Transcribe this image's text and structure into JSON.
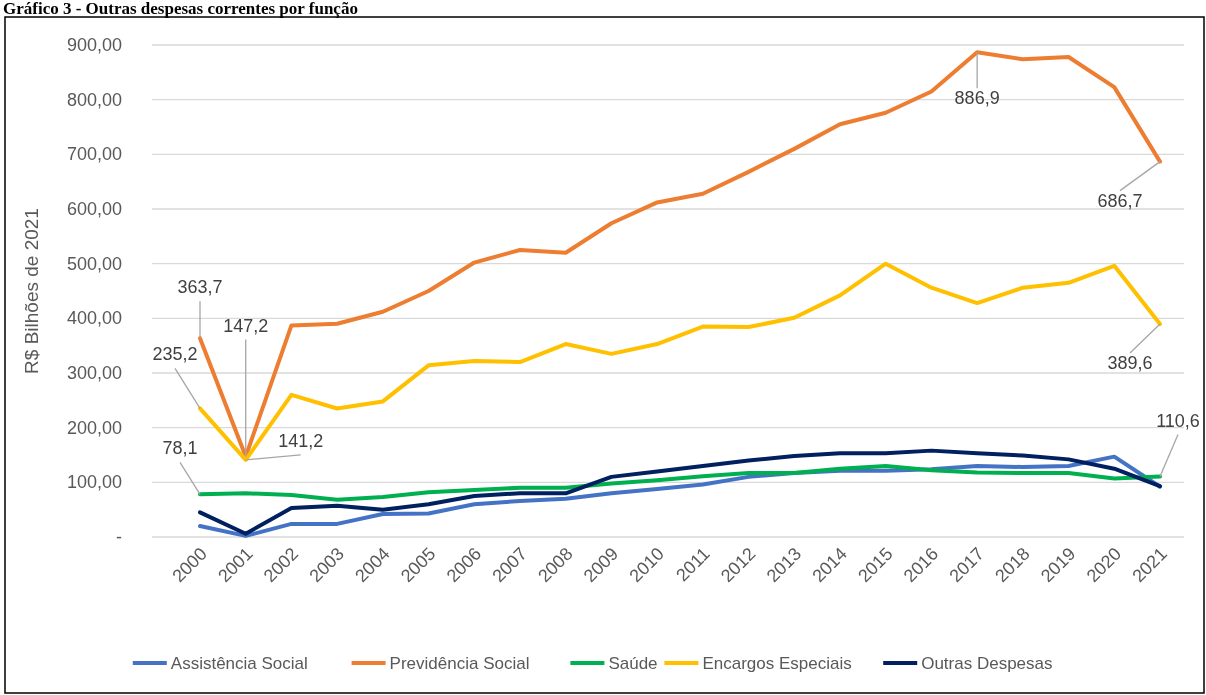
{
  "chart_data": {
    "type": "line",
    "title": "Gráfico 3 - Outras despesas correntes por função",
    "ylabel": "R$ Bilhões de 2021",
    "categories": [
      "2000",
      "2001",
      "2002",
      "2003",
      "2004",
      "2005",
      "2006",
      "2007",
      "2008",
      "2009",
      "2010",
      "2011",
      "2012",
      "2013",
      "2014",
      "2015",
      "2016",
      "2017",
      "2018",
      "2019",
      "2020",
      "2021"
    ],
    "series": [
      {
        "name": "Assistência Social",
        "color": "#4472c4",
        "values": [
          20,
          2,
          24,
          24,
          42,
          43,
          60,
          66,
          70,
          80,
          88,
          96,
          110,
          117,
          121,
          121,
          124,
          130,
          128,
          130,
          147,
          92
        ]
      },
      {
        "name": "Previdência Social",
        "color": "#ed7d31",
        "values": [
          363.7,
          147.2,
          387,
          390,
          412,
          450,
          502,
          525,
          520,
          574,
          612,
          628,
          668,
          710,
          755,
          776,
          815,
          886.9,
          874,
          878,
          823,
          686.7
        ],
        "value_labels": [
          "363,7",
          "147,2",
          null,
          null,
          null,
          null,
          null,
          null,
          null,
          null,
          null,
          null,
          null,
          null,
          null,
          null,
          null,
          "886,9",
          null,
          null,
          null,
          "686,7"
        ]
      },
      {
        "name": "Saúde",
        "color": "#00b050",
        "values": [
          78.1,
          80,
          77,
          68,
          73,
          82,
          86,
          90,
          90,
          98,
          104,
          111,
          117,
          117,
          125,
          130,
          122,
          118,
          117,
          117,
          107,
          110.6
        ],
        "value_labels": [
          "78,1",
          null,
          null,
          null,
          null,
          null,
          null,
          null,
          null,
          null,
          null,
          null,
          null,
          null,
          null,
          null,
          null,
          null,
          null,
          null,
          null,
          "110,6"
        ]
      },
      {
        "name": "Encargos Especiais",
        "color": "#ffc000",
        "values": [
          235.2,
          141.2,
          260,
          235,
          248,
          314,
          322,
          320,
          353,
          335,
          353,
          385,
          384,
          401,
          442,
          500,
          456,
          428,
          456,
          465,
          496,
          389.6
        ],
        "value_labels": [
          "235,2",
          "141,2",
          null,
          null,
          null,
          null,
          null,
          null,
          null,
          null,
          null,
          null,
          null,
          null,
          null,
          null,
          null,
          null,
          null,
          null,
          null,
          "389,6"
        ]
      },
      {
        "name": "Outras Despesas",
        "color": "#002060",
        "values": [
          45,
          6,
          53,
          57,
          50,
          60,
          75,
          80,
          80,
          110,
          120,
          130,
          140,
          148,
          153,
          153,
          158,
          153,
          149,
          142,
          125,
          93
        ]
      }
    ],
    "ylim": [
      0,
      900
    ],
    "yticks": [
      {
        "value": 0,
        "label": "-"
      },
      {
        "value": 100,
        "label": "100,00"
      },
      {
        "value": 200,
        "label": "200,00"
      },
      {
        "value": 300,
        "label": "300,00"
      },
      {
        "value": 400,
        "label": "400,00"
      },
      {
        "value": 500,
        "label": "500,00"
      },
      {
        "value": 600,
        "label": "600,00"
      },
      {
        "value": 700,
        "label": "700,00"
      },
      {
        "value": 800,
        "label": "800,00"
      },
      {
        "value": 900,
        "label": "900,00"
      }
    ],
    "grid": "y",
    "legend": "bottom",
    "marker": "none",
    "line_style": "solid"
  }
}
